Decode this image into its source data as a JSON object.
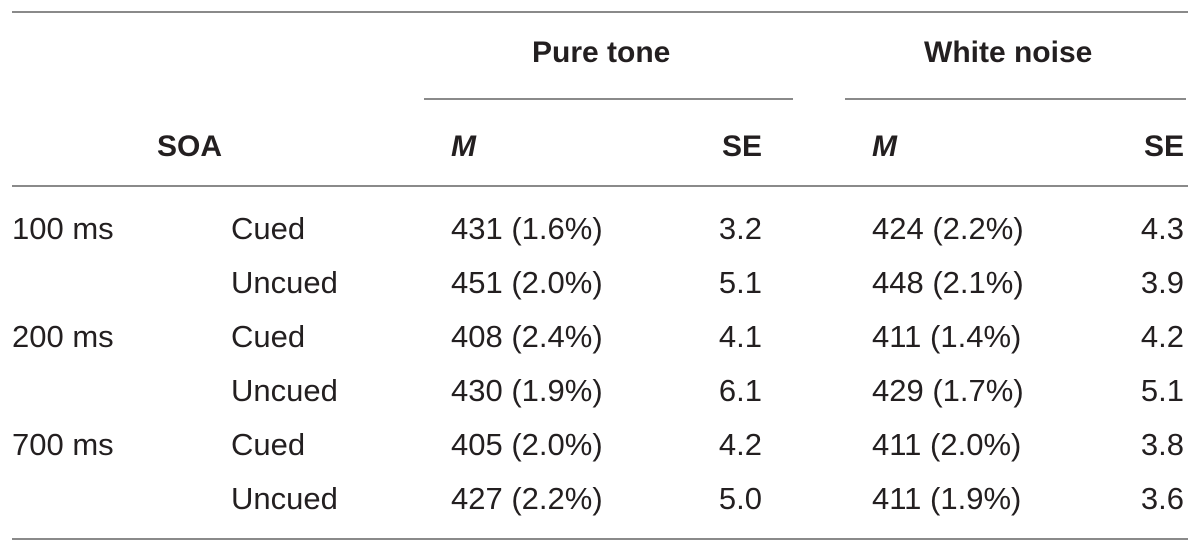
{
  "table": {
    "group_headers": {
      "pure_tone": "Pure tone",
      "white_noise": "White noise"
    },
    "sub_headers": {
      "soa": "SOA",
      "pure_m": "M",
      "pure_se": "SE",
      "noise_m": "M",
      "noise_se": "SE"
    },
    "rows": [
      {
        "soa": "100 ms",
        "cue": "Cued",
        "pure_m": "431 (1.6%)",
        "pure_se": "3.2",
        "noise_m": "424 (2.2%)",
        "noise_se": "4.3"
      },
      {
        "soa": "",
        "cue": "Uncued",
        "pure_m": "451 (2.0%)",
        "pure_se": "5.1",
        "noise_m": "448 (2.1%)",
        "noise_se": "3.9"
      },
      {
        "soa": "200 ms",
        "cue": "Cued",
        "pure_m": "408 (2.4%)",
        "pure_se": "4.1",
        "noise_m": "411 (1.4%)",
        "noise_se": "4.2"
      },
      {
        "soa": "",
        "cue": "Uncued",
        "pure_m": "430 (1.9%)",
        "pure_se": "6.1",
        "noise_m": "429 (1.7%)",
        "noise_se": "5.1"
      },
      {
        "soa": "700 ms",
        "cue": "Cued",
        "pure_m": "405 (2.0%)",
        "pure_se": "4.2",
        "noise_m": "411 (2.0%)",
        "noise_se": "3.8"
      },
      {
        "soa": "",
        "cue": "Uncued",
        "pure_m": "427 (2.2%)",
        "pure_se": "5.0",
        "noise_m": "411 (1.9%)",
        "noise_se": "3.6"
      }
    ]
  }
}
